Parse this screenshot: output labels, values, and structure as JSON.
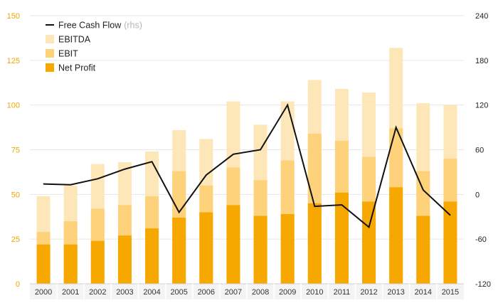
{
  "chart_data": {
    "type": "bar",
    "categories": [
      "2000",
      "2001",
      "2002",
      "2003",
      "2004",
      "2005",
      "2006",
      "2007",
      "2008",
      "2009",
      "2010",
      "2011",
      "2012",
      "2013",
      "2014",
      "2015"
    ],
    "series": [
      {
        "name": "EBITDA",
        "axis": "left",
        "kind": "bar",
        "color": "#fde7b8",
        "values": [
          49,
          55,
          67,
          68,
          74,
          86,
          81,
          102,
          89,
          102,
          114,
          109,
          107,
          132,
          101,
          100
        ]
      },
      {
        "name": "EBIT",
        "axis": "left",
        "kind": "bar",
        "color": "#fdd27a",
        "values": [
          29,
          35,
          42,
          44,
          49,
          63,
          55,
          65,
          58,
          69,
          84,
          80,
          71,
          87,
          63,
          70
        ]
      },
      {
        "name": "Net Profit",
        "axis": "left",
        "kind": "bar",
        "color": "#f7a800",
        "values": [
          22,
          22,
          24,
          27,
          31,
          37,
          40,
          44,
          38,
          39,
          45,
          51,
          46,
          54,
          38,
          46
        ]
      },
      {
        "name": "Free Cash Flow",
        "legend_suffix": "(rhs)",
        "axis": "right",
        "kind": "line",
        "color": "#111111",
        "values": [
          14,
          13,
          21,
          34,
          44,
          -24,
          26,
          54,
          60,
          120,
          -16,
          -14,
          -44,
          90,
          6,
          -28
        ]
      }
    ],
    "legend_order": [
      "Free Cash Flow",
      "EBITDA",
      "EBIT",
      "Net Profit"
    ],
    "title": "",
    "xlabel": "",
    "ylabel": "",
    "ylim": [
      0,
      150
    ],
    "y_ticks": [
      "0",
      "25",
      "50",
      "75",
      "100",
      "125",
      "150"
    ],
    "y2lim": [
      -120,
      240
    ],
    "y2_ticks": [
      "-120",
      "-60",
      "0",
      "60",
      "120",
      "180",
      "240"
    ],
    "grid": "horizontal",
    "legend_position": "top-left",
    "colors": {
      "left_axis_labels": "#f0a800",
      "grid": "#e6e6e6"
    }
  }
}
